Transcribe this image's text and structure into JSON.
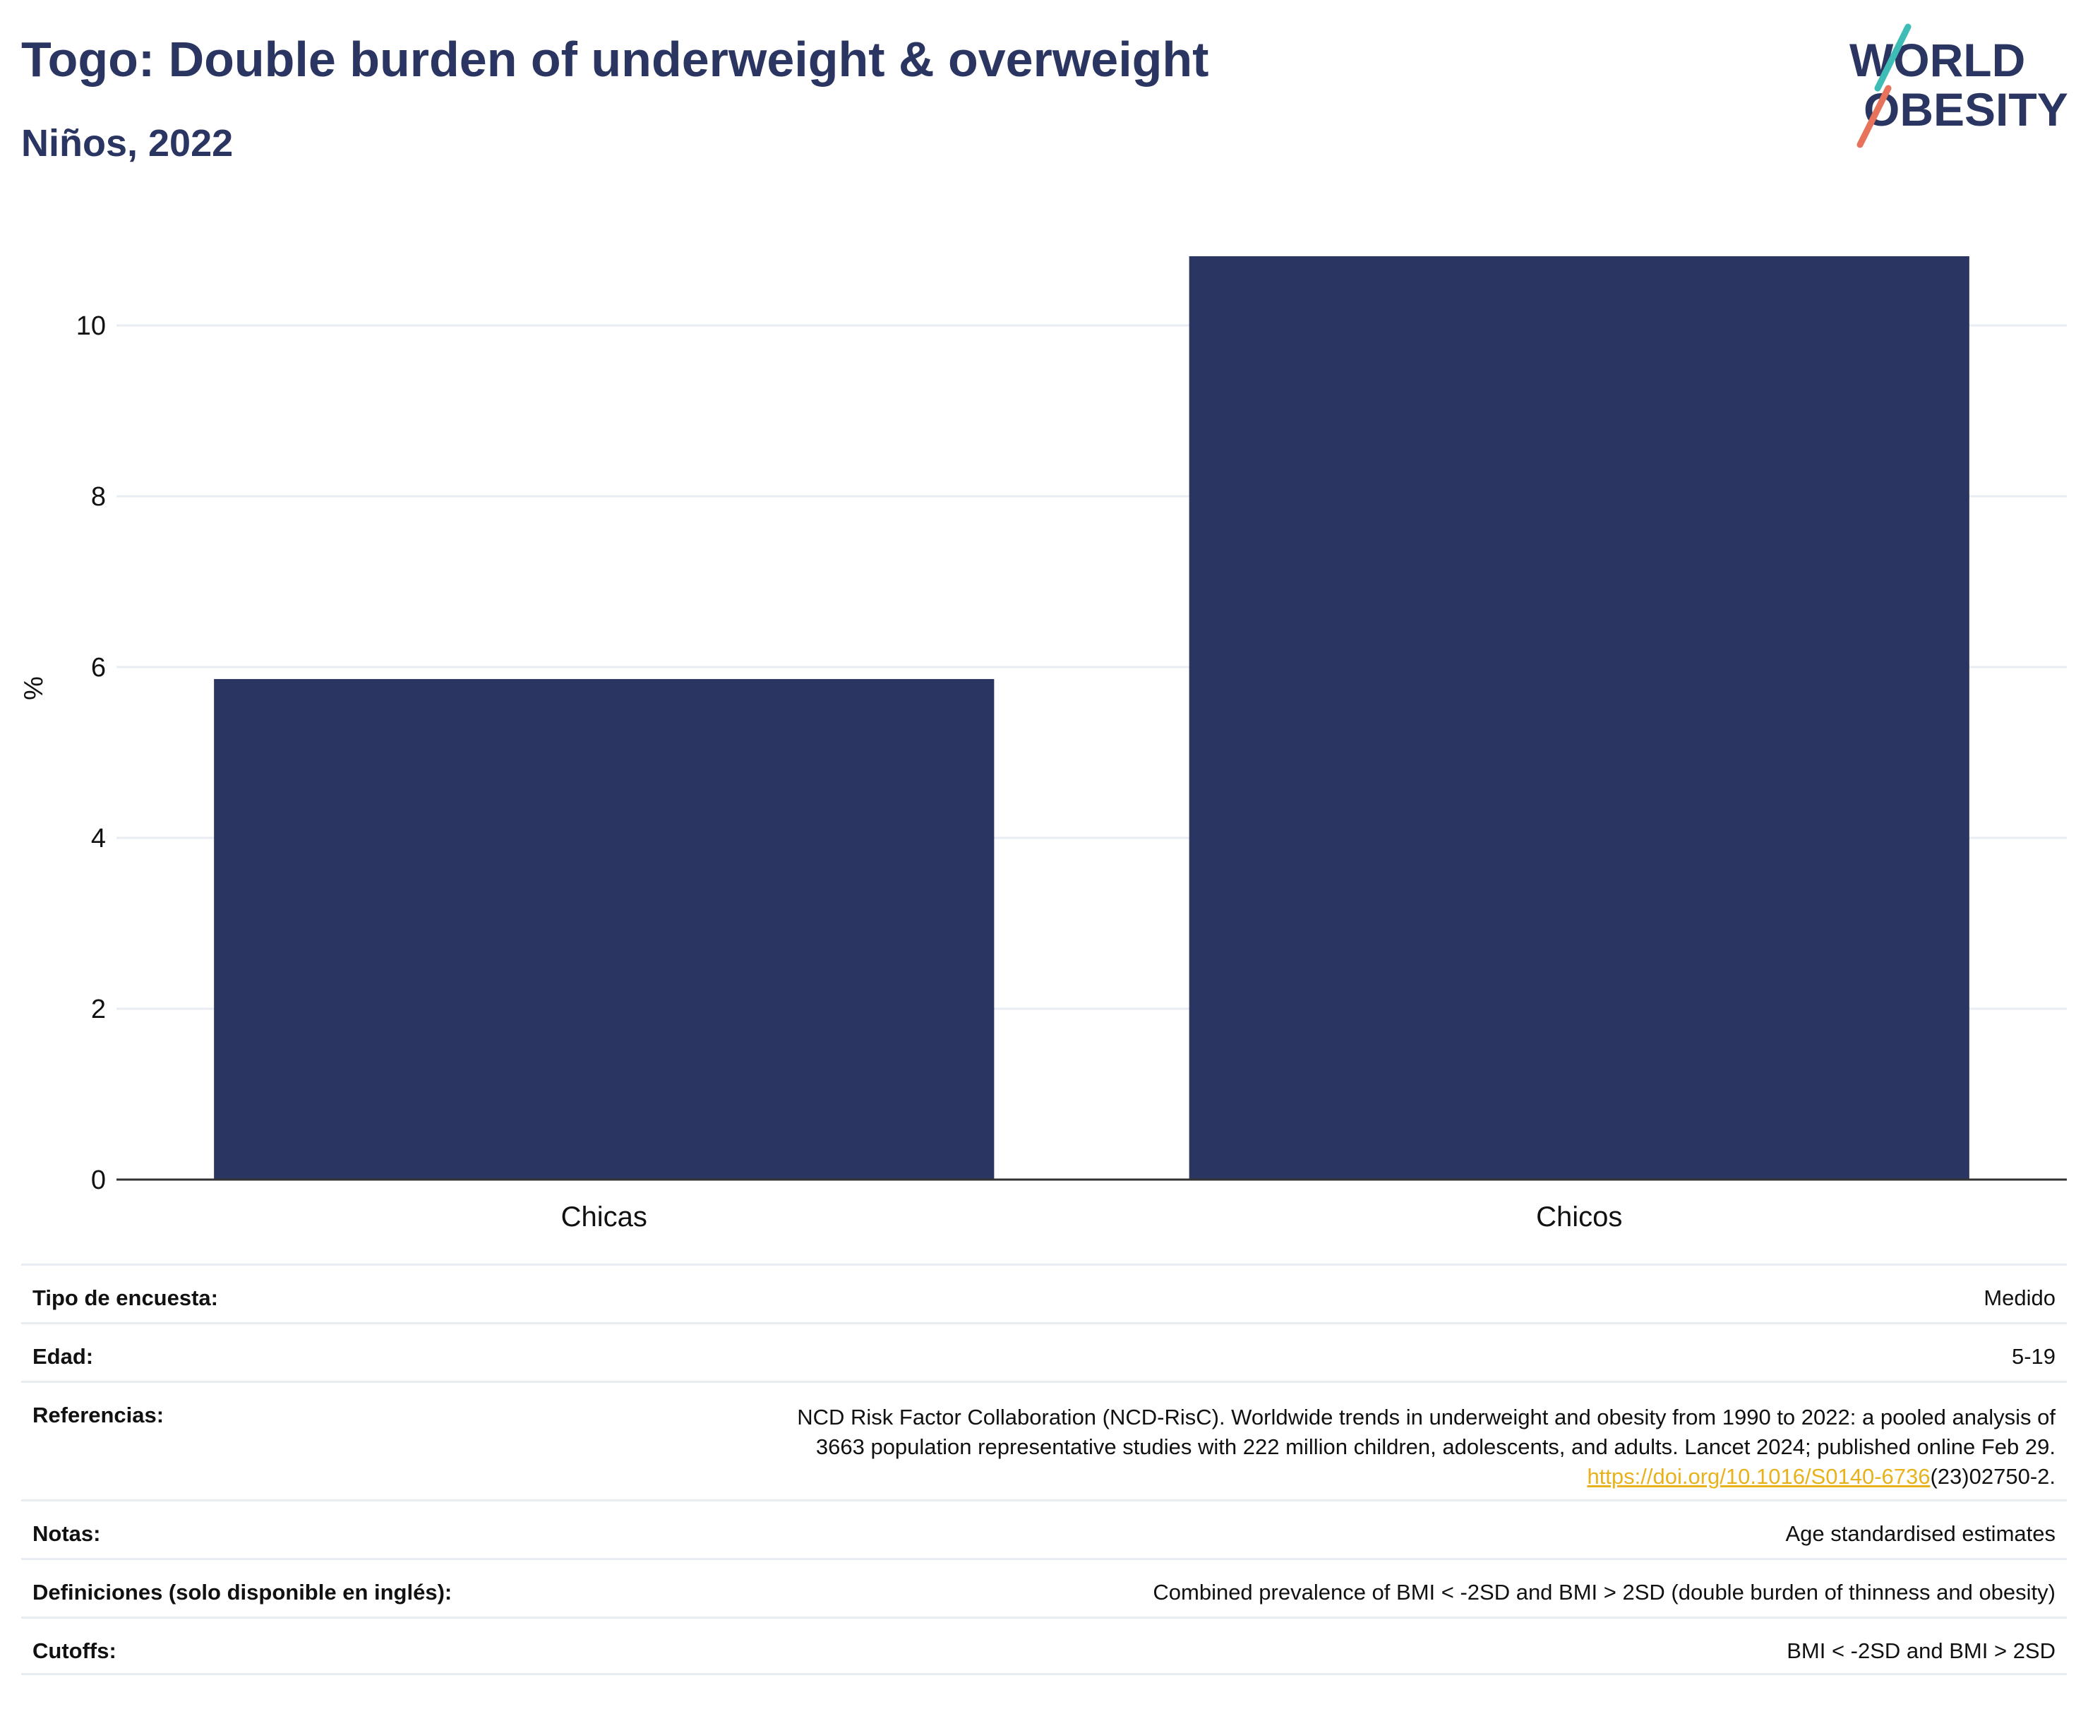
{
  "header": {
    "title": "Togo: Double burden of underweight & overweight",
    "subtitle": "Niños, 2022"
  },
  "logo": {
    "line1": "WORLD",
    "line2": "OBESITY"
  },
  "chart_data": {
    "type": "bar",
    "categories": [
      "Chicas",
      "Chicos"
    ],
    "values": [
      5.86,
      10.81
    ],
    "ylabel": "%",
    "xlabel": "",
    "ylim": [
      0,
      11
    ],
    "yticks": [
      0,
      2,
      4,
      6,
      8,
      10
    ],
    "grid": true,
    "bar_color": "#2a3561"
  },
  "meta": {
    "survey_type": {
      "label": "Tipo de encuesta:",
      "value": "Medido"
    },
    "age": {
      "label": "Edad:",
      "value": "5-19"
    },
    "references": {
      "label": "Referencias:",
      "line1": "NCD Risk Factor Collaboration (NCD-RisC). Worldwide trends in underweight and obesity from 1990 to 2022: a pooled analysis of",
      "line2": "3663 population representative studies with 222 million children, adolescents, and adults. Lancet 2024; published online Feb 29.",
      "link": "https://doi.org/10.1016/S0140-6736",
      "link_suffix": "(23)02750-2."
    },
    "notes": {
      "label": "Notas:",
      "value": "Age standardised estimates"
    },
    "definitions": {
      "label": "Definiciones (solo disponible en inglés):",
      "value": "Combined prevalence of BMI < -2SD and BMI > 2SD (double burden of thinness and obesity)"
    },
    "cutoffs": {
      "label": "Cutoffs:",
      "value": "BMI < -2SD and BMI > 2SD"
    }
  },
  "colors": {
    "brand": "#2a3561",
    "teal": "#3dbdb5",
    "coral": "#e8735c",
    "link": "#e8b21c"
  }
}
